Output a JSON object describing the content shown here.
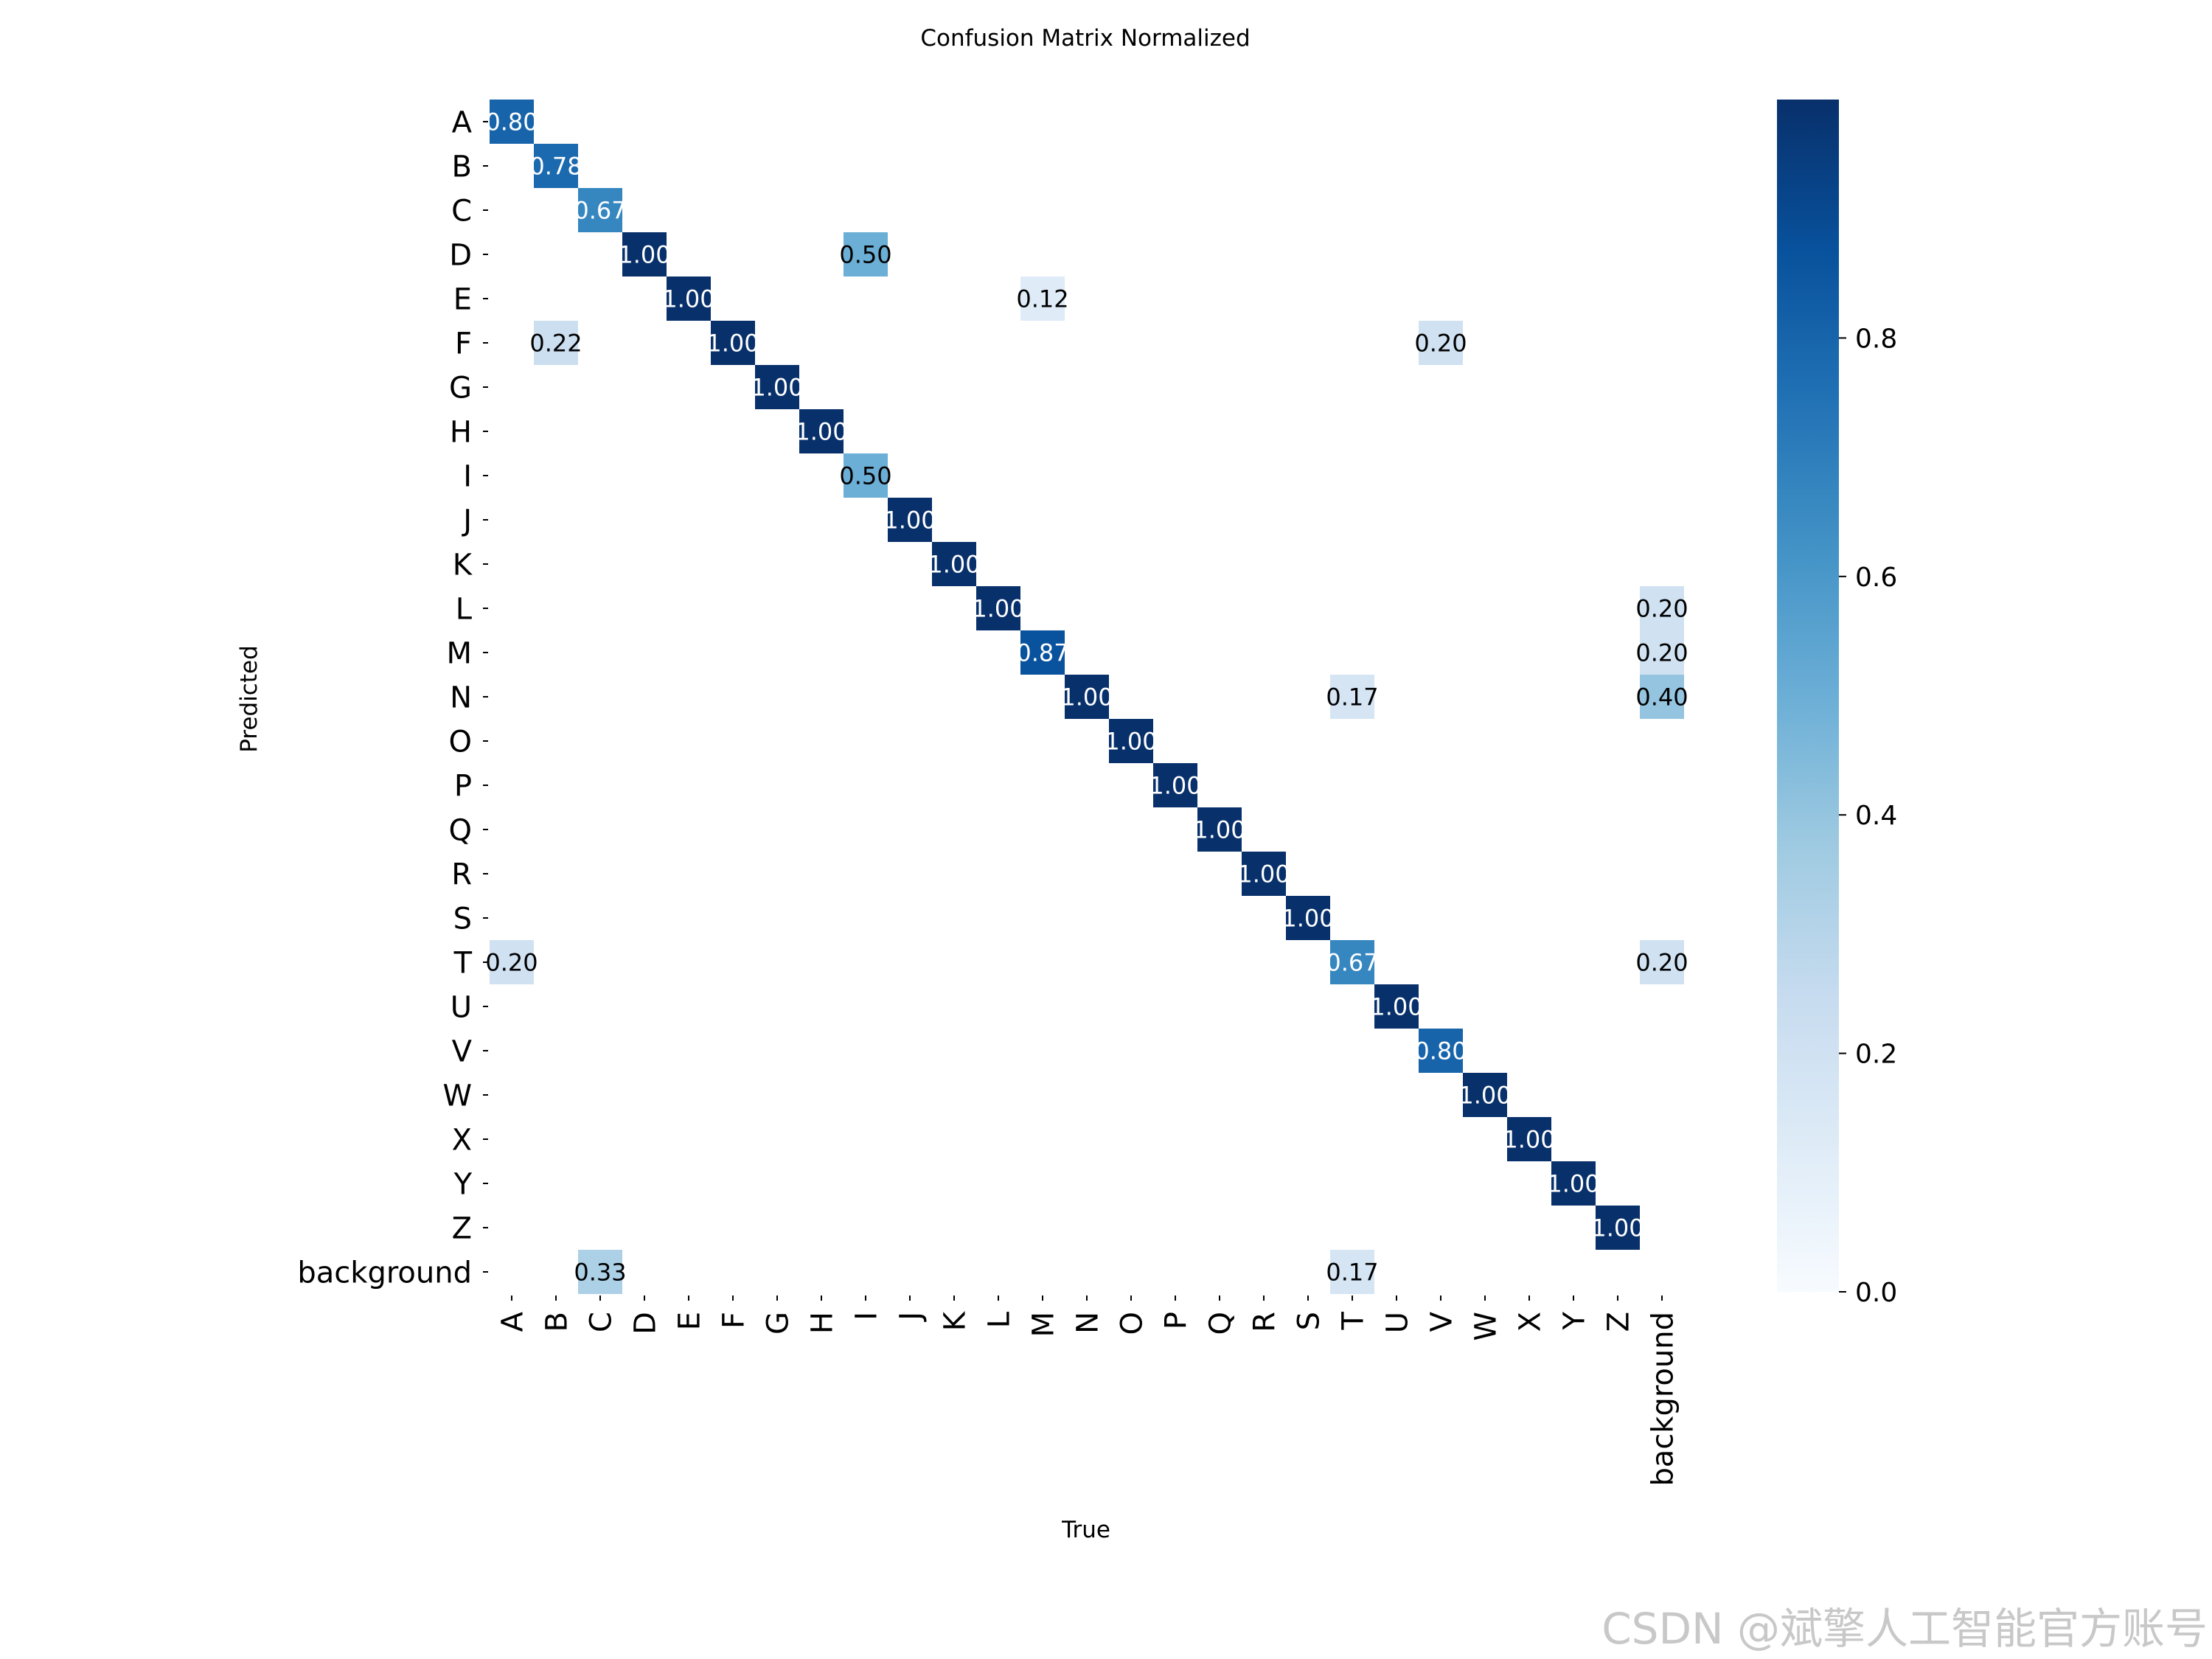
{
  "watermark": "CSDN @斌擎人工智能官方账号",
  "chart_data": {
    "type": "heatmap",
    "title": "Confusion Matrix Normalized",
    "xlabel": "True",
    "ylabel": "Predicted",
    "labels": [
      "A",
      "B",
      "C",
      "D",
      "E",
      "F",
      "G",
      "H",
      "I",
      "J",
      "K",
      "L",
      "M",
      "N",
      "O",
      "P",
      "Q",
      "R",
      "S",
      "T",
      "U",
      "V",
      "W",
      "X",
      "Y",
      "Z",
      "background"
    ],
    "cells": [
      {
        "pred": "A",
        "true": "A",
        "value": 0.8
      },
      {
        "pred": "B",
        "true": "B",
        "value": 0.78
      },
      {
        "pred": "C",
        "true": "C",
        "value": 0.67
      },
      {
        "pred": "D",
        "true": "D",
        "value": 1.0
      },
      {
        "pred": "D",
        "true": "I",
        "value": 0.5
      },
      {
        "pred": "E",
        "true": "E",
        "value": 1.0
      },
      {
        "pred": "E",
        "true": "M",
        "value": 0.12
      },
      {
        "pred": "F",
        "true": "B",
        "value": 0.22
      },
      {
        "pred": "F",
        "true": "F",
        "value": 1.0
      },
      {
        "pred": "F",
        "true": "V",
        "value": 0.2
      },
      {
        "pred": "G",
        "true": "G",
        "value": 1.0
      },
      {
        "pred": "H",
        "true": "H",
        "value": 1.0
      },
      {
        "pred": "I",
        "true": "I",
        "value": 0.5
      },
      {
        "pred": "J",
        "true": "J",
        "value": 1.0
      },
      {
        "pred": "K",
        "true": "K",
        "value": 1.0
      },
      {
        "pred": "L",
        "true": "L",
        "value": 1.0
      },
      {
        "pred": "L",
        "true": "background",
        "value": 0.2
      },
      {
        "pred": "M",
        "true": "M",
        "value": 0.87
      },
      {
        "pred": "M",
        "true": "background",
        "value": 0.2
      },
      {
        "pred": "N",
        "true": "N",
        "value": 1.0
      },
      {
        "pred": "N",
        "true": "T",
        "value": 0.17
      },
      {
        "pred": "N",
        "true": "background",
        "value": 0.4
      },
      {
        "pred": "O",
        "true": "O",
        "value": 1.0
      },
      {
        "pred": "P",
        "true": "P",
        "value": 1.0
      },
      {
        "pred": "Q",
        "true": "Q",
        "value": 1.0
      },
      {
        "pred": "R",
        "true": "R",
        "value": 1.0
      },
      {
        "pred": "S",
        "true": "S",
        "value": 1.0
      },
      {
        "pred": "T",
        "true": "A",
        "value": 0.2
      },
      {
        "pred": "T",
        "true": "T",
        "value": 0.67
      },
      {
        "pred": "T",
        "true": "background",
        "value": 0.2
      },
      {
        "pred": "U",
        "true": "U",
        "value": 1.0
      },
      {
        "pred": "V",
        "true": "V",
        "value": 0.8
      },
      {
        "pred": "W",
        "true": "W",
        "value": 1.0
      },
      {
        "pred": "X",
        "true": "X",
        "value": 1.0
      },
      {
        "pred": "Y",
        "true": "Y",
        "value": 1.0
      },
      {
        "pred": "Z",
        "true": "Z",
        "value": 1.0
      },
      {
        "pred": "background",
        "true": "C",
        "value": 0.33
      },
      {
        "pred": "background",
        "true": "T",
        "value": 0.17
      }
    ],
    "colorbar": {
      "ticks": [
        0.0,
        0.2,
        0.4,
        0.6,
        0.8
      ],
      "tick_labels": [
        "0.0",
        "0.2",
        "0.4",
        "0.6",
        "0.8"
      ],
      "range": [
        0,
        1.0
      ],
      "colormap": "Blues",
      "colors": [
        "#f7fbff",
        "#deebf7",
        "#c6dbef",
        "#9ecae1",
        "#6baed6",
        "#4292c6",
        "#2171b5",
        "#08519c",
        "#08306b"
      ]
    },
    "grid": false
  }
}
